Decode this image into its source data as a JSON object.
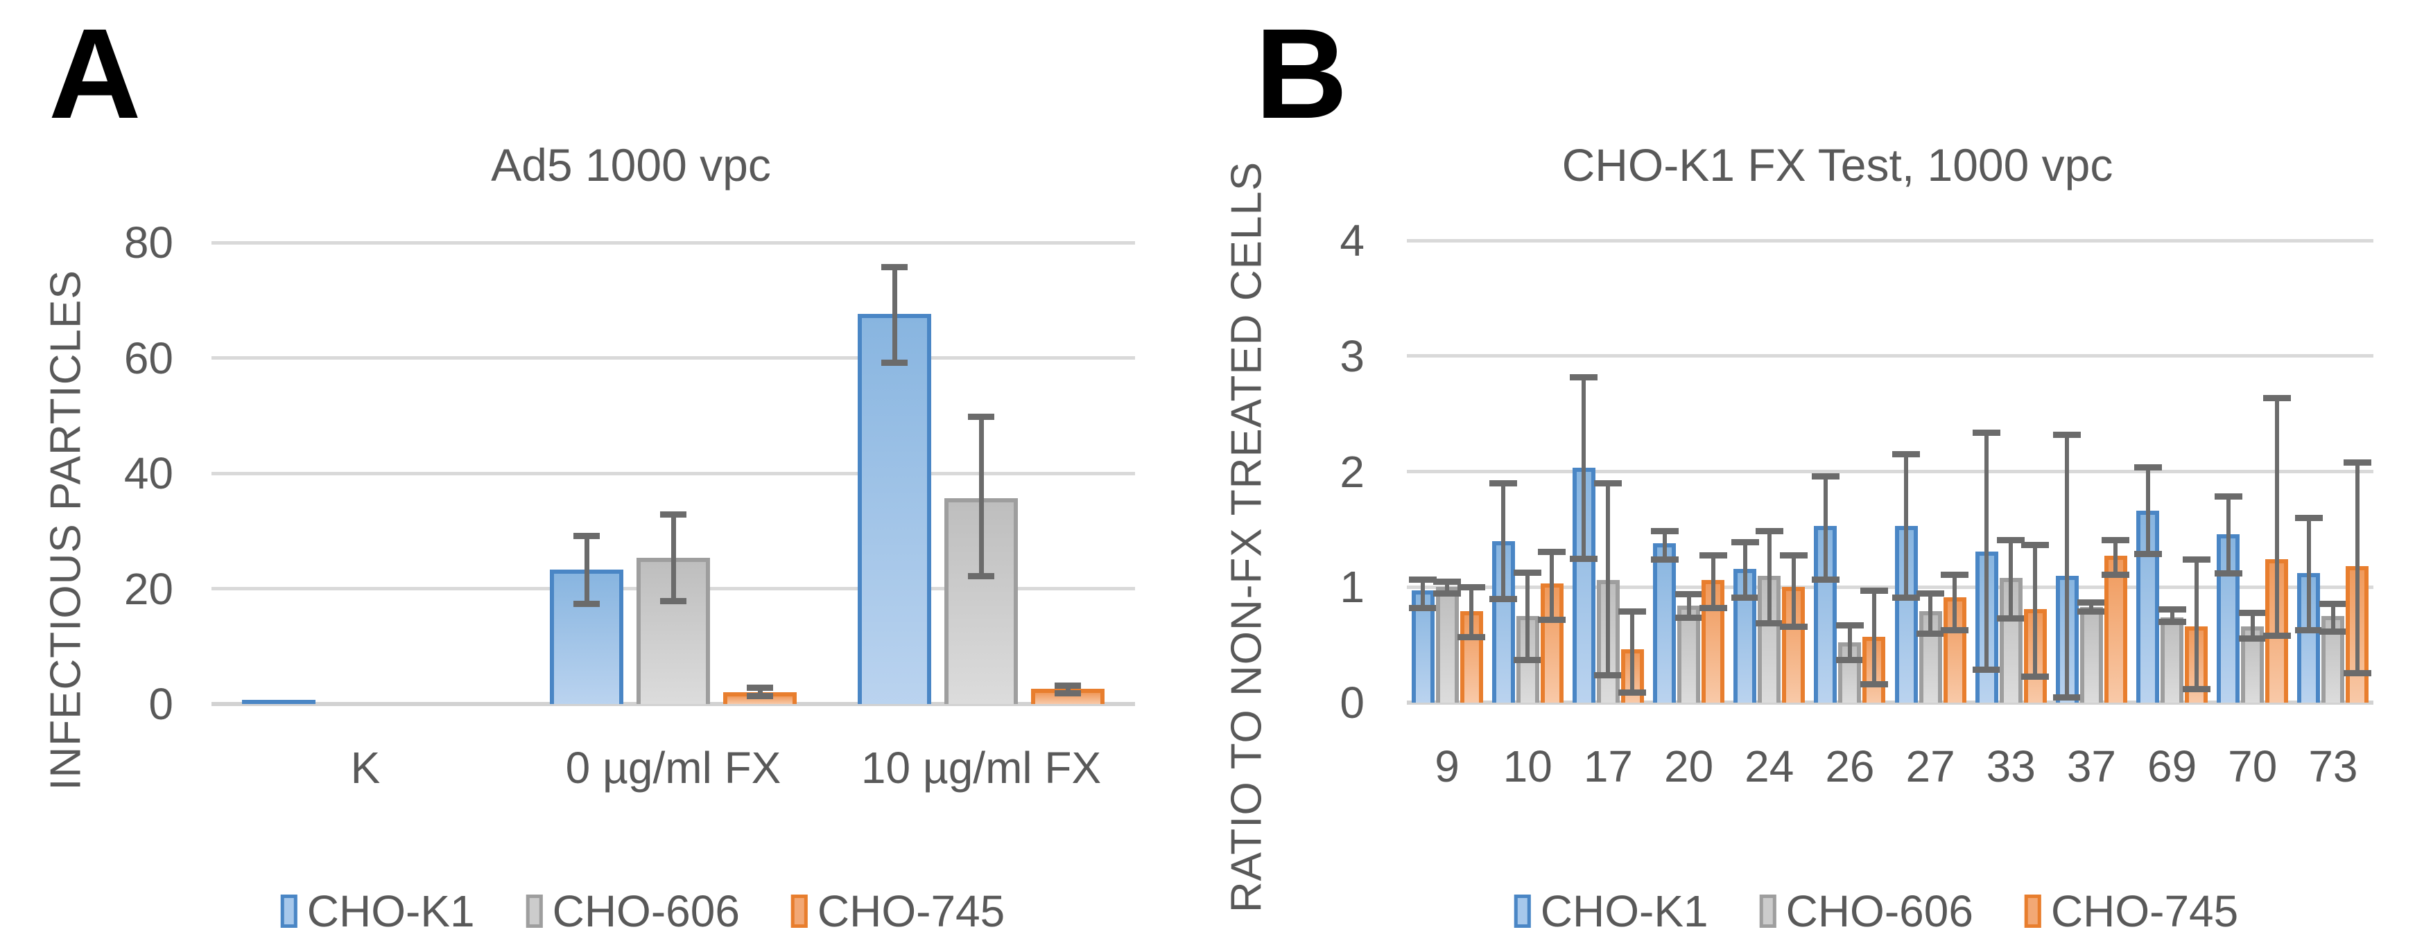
{
  "figure_background": "#ffffff",
  "text_color": "#595959",
  "error_bar_color": "#6B6B6B",
  "gridline_color": "#D9D9D9",
  "series_colors": {
    "CHO-K1": {
      "border": "#4A86C5",
      "fill_top": "#88B5E0",
      "fill_bottom": "#BAD3EF",
      "legend_fill": "#A7C8EB"
    },
    "CHO-606": {
      "border": "#9E9E9E",
      "fill_top": "#BEBEBE",
      "fill_bottom": "#DCDCDC",
      "legend_fill": "#CCCCCC"
    },
    "CHO-745": {
      "border": "#E87E2E",
      "fill_top": "#F09A5C",
      "fill_bottom": "#F8C9A8",
      "legend_fill": "#F2A875"
    }
  },
  "chart_data": [
    {
      "type": "bar",
      "panel_letter": "A",
      "title": "Ad5 1000 vpc",
      "xlabel": "",
      "ylabel": "INFECTIOUS PARTICLES",
      "ylim": [
        0,
        80
      ],
      "yticks": [
        0,
        20,
        40,
        60,
        80
      ],
      "grid": true,
      "legend_position": "bottom",
      "categories": [
        "K",
        "0 µg/ml FX",
        "10 µg/ml FX"
      ],
      "series": [
        {
          "name": "CHO-K1",
          "color_key": "CHO-K1",
          "values": [
            0.7,
            23.3,
            67.6
          ],
          "err_lo": [
            null,
            17.4,
            59.2
          ],
          "err_hi": [
            null,
            29.2,
            75.8
          ]
        },
        {
          "name": "CHO-606",
          "color_key": "CHO-606",
          "values": [
            0,
            25.4,
            35.7
          ],
          "err_lo": [
            null,
            17.9,
            22.2
          ],
          "err_hi": [
            null,
            32.9,
            49.8
          ]
        },
        {
          "name": "CHO-745",
          "color_key": "CHO-745",
          "values": [
            0,
            2.0,
            2.6
          ],
          "err_lo": [
            null,
            1.5,
            1.9
          ],
          "err_hi": [
            null,
            2.9,
            3.3
          ]
        }
      ]
    },
    {
      "type": "bar",
      "panel_letter": "B",
      "title": "CHO-K1 FX Test, 1000 vpc",
      "xlabel": "",
      "ylabel": "RATIO TO NON-FX TREATED CELLS",
      "ylim": [
        0,
        4
      ],
      "yticks": [
        0,
        1,
        2,
        3,
        4
      ],
      "grid": true,
      "legend_position": "bottom",
      "categories": [
        "9",
        "10",
        "17",
        "20",
        "24",
        "26",
        "27",
        "33",
        "37",
        "69",
        "70",
        "73"
      ],
      "series": [
        {
          "name": "CHO-K1",
          "color_key": "CHO-K1",
          "values": [
            0.97,
            1.4,
            2.03,
            1.38,
            1.16,
            1.53,
            1.53,
            1.31,
            1.1,
            1.66,
            1.46,
            1.12
          ],
          "err_lo": [
            0.82,
            0.9,
            1.25,
            1.24,
            0.91,
            1.07,
            0.91,
            0.29,
            0.05,
            1.29,
            1.12,
            0.63
          ],
          "err_hi": [
            1.07,
            1.9,
            2.82,
            1.49,
            1.39,
            1.96,
            2.15,
            2.34,
            2.32,
            2.04,
            1.79,
            1.6
          ]
        },
        {
          "name": "CHO-606",
          "color_key": "CHO-606",
          "values": [
            1.0,
            0.75,
            1.06,
            0.84,
            1.1,
            0.52,
            0.79,
            1.08,
            0.83,
            0.74,
            0.66,
            0.75
          ],
          "err_lo": [
            0.95,
            0.37,
            0.24,
            0.74,
            0.69,
            0.37,
            0.6,
            0.73,
            0.79,
            0.7,
            0.56,
            0.62
          ],
          "err_hi": [
            1.05,
            1.13,
            1.9,
            0.94,
            1.49,
            0.67,
            0.95,
            1.41,
            0.87,
            0.81,
            0.78,
            0.86
          ]
        },
        {
          "name": "CHO-745",
          "color_key": "CHO-745",
          "values": [
            0.79,
            1.03,
            0.46,
            1.06,
            1.0,
            0.57,
            0.91,
            0.81,
            1.27,
            0.66,
            1.24,
            1.18
          ],
          "err_lo": [
            0.57,
            0.72,
            0.09,
            0.82,
            0.66,
            0.16,
            0.63,
            0.23,
            1.11,
            0.12,
            0.58,
            0.26
          ],
          "err_hi": [
            1.0,
            1.31,
            0.79,
            1.28,
            1.28,
            0.97,
            1.11,
            1.37,
            1.41,
            1.24,
            2.64,
            2.08
          ]
        }
      ]
    }
  ]
}
